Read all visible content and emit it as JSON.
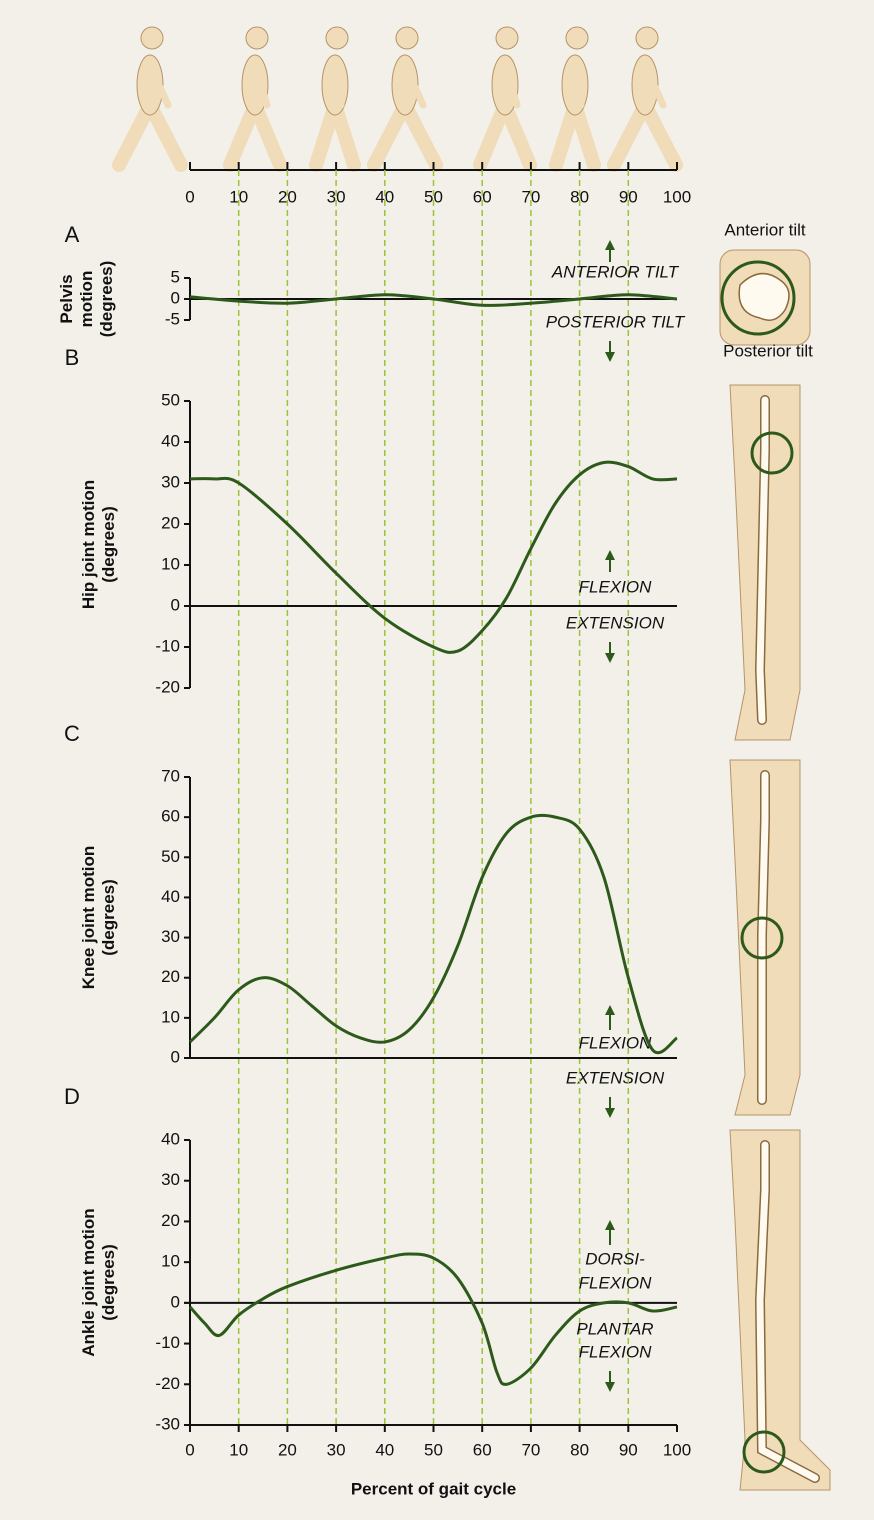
{
  "chart_data": [
    {
      "type": "line",
      "panel": "A",
      "ylabel": [
        "Pelvis",
        "motion",
        "(degrees)"
      ],
      "x": [
        0,
        10,
        20,
        30,
        40,
        50,
        60,
        70,
        80,
        90,
        100
      ],
      "series": [
        {
          "color": "#2d5a1b",
          "values": [
            0.5,
            -0.5,
            -1,
            0,
            1,
            0,
            -1.5,
            -1,
            0,
            1,
            0
          ]
        }
      ],
      "xlim": [
        0,
        100
      ],
      "xticks": [
        0,
        10,
        20,
        30,
        40,
        50,
        60,
        70,
        80,
        90,
        100
      ],
      "ylim": [
        -5,
        5
      ],
      "yticks": [
        5,
        0,
        -5
      ],
      "grid": true,
      "annotations": {
        "up": [
          "ANTERIOR TILT"
        ],
        "down": [
          "POSTERIOR TILT"
        ]
      },
      "figure_labels": [
        "Anterior tilt",
        "Posterior tilt"
      ]
    },
    {
      "type": "line",
      "panel": "B",
      "ylabel": [
        "Hip joint motion",
        "(degrees)"
      ],
      "x": [
        0,
        5,
        10,
        20,
        30,
        40,
        50,
        55,
        60,
        65,
        70,
        75,
        80,
        85,
        90,
        95,
        100
      ],
      "series": [
        {
          "color": "#2d5a1b",
          "values": [
            31,
            31,
            30,
            20,
            8,
            -3,
            -10,
            -11,
            -6,
            2,
            14,
            25,
            32,
            35,
            34,
            31,
            31
          ]
        }
      ],
      "xlim": [
        0,
        100
      ],
      "xticks": [
        0,
        10,
        20,
        30,
        40,
        50,
        60,
        70,
        80,
        90,
        100
      ],
      "ylim": [
        -20,
        50
      ],
      "yticks": [
        50,
        40,
        30,
        20,
        10,
        0,
        -10,
        -20
      ],
      "grid": true,
      "annotations": {
        "up": [
          "FLEXION"
        ],
        "down": [
          "EXTENSION"
        ]
      }
    },
    {
      "type": "line",
      "panel": "C",
      "ylabel": [
        "Knee joint motion",
        "(degrees)"
      ],
      "x": [
        0,
        5,
        10,
        15,
        20,
        25,
        30,
        35,
        40,
        45,
        50,
        55,
        60,
        65,
        70,
        75,
        80,
        85,
        90,
        95,
        100
      ],
      "series": [
        {
          "color": "#2d5a1b",
          "values": [
            4,
            10,
            17,
            20,
            18,
            13,
            8,
            5,
            4,
            7,
            15,
            28,
            45,
            56,
            60,
            60,
            57,
            45,
            20,
            2,
            5
          ]
        }
      ],
      "xlim": [
        0,
        100
      ],
      "xticks": [
        0,
        10,
        20,
        30,
        40,
        50,
        60,
        70,
        80,
        90,
        100
      ],
      "ylim": [
        0,
        70
      ],
      "yticks": [
        70,
        60,
        50,
        40,
        30,
        20,
        10,
        0
      ],
      "grid": true,
      "annotations": {
        "up": [
          "FLEXION"
        ],
        "down": [
          "EXTENSION"
        ]
      }
    },
    {
      "type": "line",
      "panel": "D",
      "ylabel": [
        "Ankle joint motion",
        "(degrees)"
      ],
      "xlabel": "Percent of gait cycle",
      "x": [
        0,
        3,
        6,
        10,
        15,
        20,
        30,
        40,
        45,
        50,
        55,
        60,
        63,
        65,
        70,
        75,
        80,
        85,
        90,
        95,
        100
      ],
      "series": [
        {
          "color": "#2d5a1b",
          "values": [
            -1,
            -5,
            -8,
            -3,
            1,
            4,
            8,
            11,
            12,
            11,
            6,
            -5,
            -17,
            -20,
            -16,
            -8,
            -2,
            0,
            0,
            -2,
            -1
          ]
        }
      ],
      "xlim": [
        0,
        100
      ],
      "xticks": [
        0,
        10,
        20,
        30,
        40,
        50,
        60,
        70,
        80,
        90,
        100
      ],
      "ylim": [
        -30,
        40
      ],
      "yticks": [
        40,
        30,
        20,
        10,
        0,
        -10,
        -20,
        -30
      ],
      "grid": true,
      "annotations": {
        "up": [
          "DORSI-",
          "FLEXION"
        ],
        "down": [
          "PLANTAR",
          "FLEXION"
        ]
      }
    }
  ]
}
